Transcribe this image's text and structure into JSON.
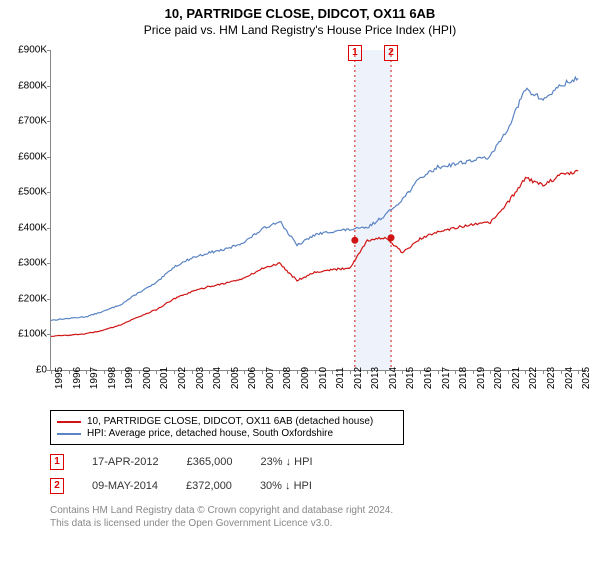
{
  "title": "10, PARTRIDGE CLOSE, DIDCOT, OX11 6AB",
  "subtitle": "Price paid vs. HM Land Registry's House Price Index (HPI)",
  "chart": {
    "type": "line",
    "x_range": [
      1995,
      2025.5
    ],
    "y_range": [
      0,
      900000
    ],
    "y_ticks": [
      0,
      100000,
      200000,
      300000,
      400000,
      500000,
      600000,
      700000,
      800000,
      900000
    ],
    "y_tick_labels": [
      "£0",
      "£100K",
      "£200K",
      "£300K",
      "£400K",
      "£500K",
      "£600K",
      "£700K",
      "£800K",
      "£900K"
    ],
    "x_ticks": [
      1995,
      1996,
      1997,
      1998,
      1999,
      2000,
      2001,
      2002,
      2003,
      2004,
      2005,
      2006,
      2007,
      2008,
      2009,
      2010,
      2011,
      2012,
      2013,
      2014,
      2015,
      2016,
      2017,
      2018,
      2019,
      2020,
      2021,
      2022,
      2023,
      2024,
      2025
    ],
    "background_color": "#ffffff",
    "axis_color": "#888888",
    "series": [
      {
        "name": "hpi",
        "label": "HPI: Average price, detached house, South Oxfordshire",
        "color": "#5b84c4",
        "width": 1.2,
        "data_yearly": [
          140,
          145,
          150,
          165,
          185,
          218,
          245,
          290,
          315,
          330,
          340,
          360,
          395,
          420,
          350,
          380,
          390,
          395,
          400,
          435,
          480,
          540,
          570,
          580,
          590,
          600,
          680,
          790,
          760,
          800,
          820
        ]
      },
      {
        "name": "property",
        "label": "10, PARTRIDGE CLOSE, DIDCOT, OX11 6AB (detached house)",
        "color": "#d01414",
        "width": 1.2,
        "data_yearly": [
          95,
          98,
          102,
          112,
          128,
          150,
          170,
          200,
          220,
          235,
          245,
          258,
          285,
          300,
          252,
          275,
          282,
          287,
          365,
          372,
          330,
          368,
          390,
          400,
          408,
          415,
          470,
          540,
          520,
          548,
          560
        ]
      }
    ],
    "events": [
      {
        "x": 2012.29,
        "label": "1"
      },
      {
        "x": 2014.35,
        "label": "2"
      }
    ],
    "event_band_color": "#eef2fa",
    "event_line_color": "#d01414",
    "event_line_dash": "2,3",
    "sale_marker_color": "#d01414",
    "sale_markers": [
      {
        "x": 2012.29,
        "y": 365000
      },
      {
        "x": 2014.35,
        "y": 372000
      }
    ]
  },
  "legend": {
    "rows": [
      {
        "color": "#d01414",
        "label_key": "chart.series.1.label"
      },
      {
        "color": "#5b84c4",
        "label_key": "chart.series.0.label"
      }
    ]
  },
  "sales": [
    {
      "marker": "1",
      "date": "17-APR-2012",
      "price": "£365,000",
      "delta": "23% ↓ HPI"
    },
    {
      "marker": "2",
      "date": "09-MAY-2014",
      "price": "£372,000",
      "delta": "30% ↓ HPI"
    }
  ],
  "footnote_line1": "Contains HM Land Registry data © Crown copyright and database right 2024.",
  "footnote_line2": "This data is licensed under the Open Government Licence v3.0."
}
